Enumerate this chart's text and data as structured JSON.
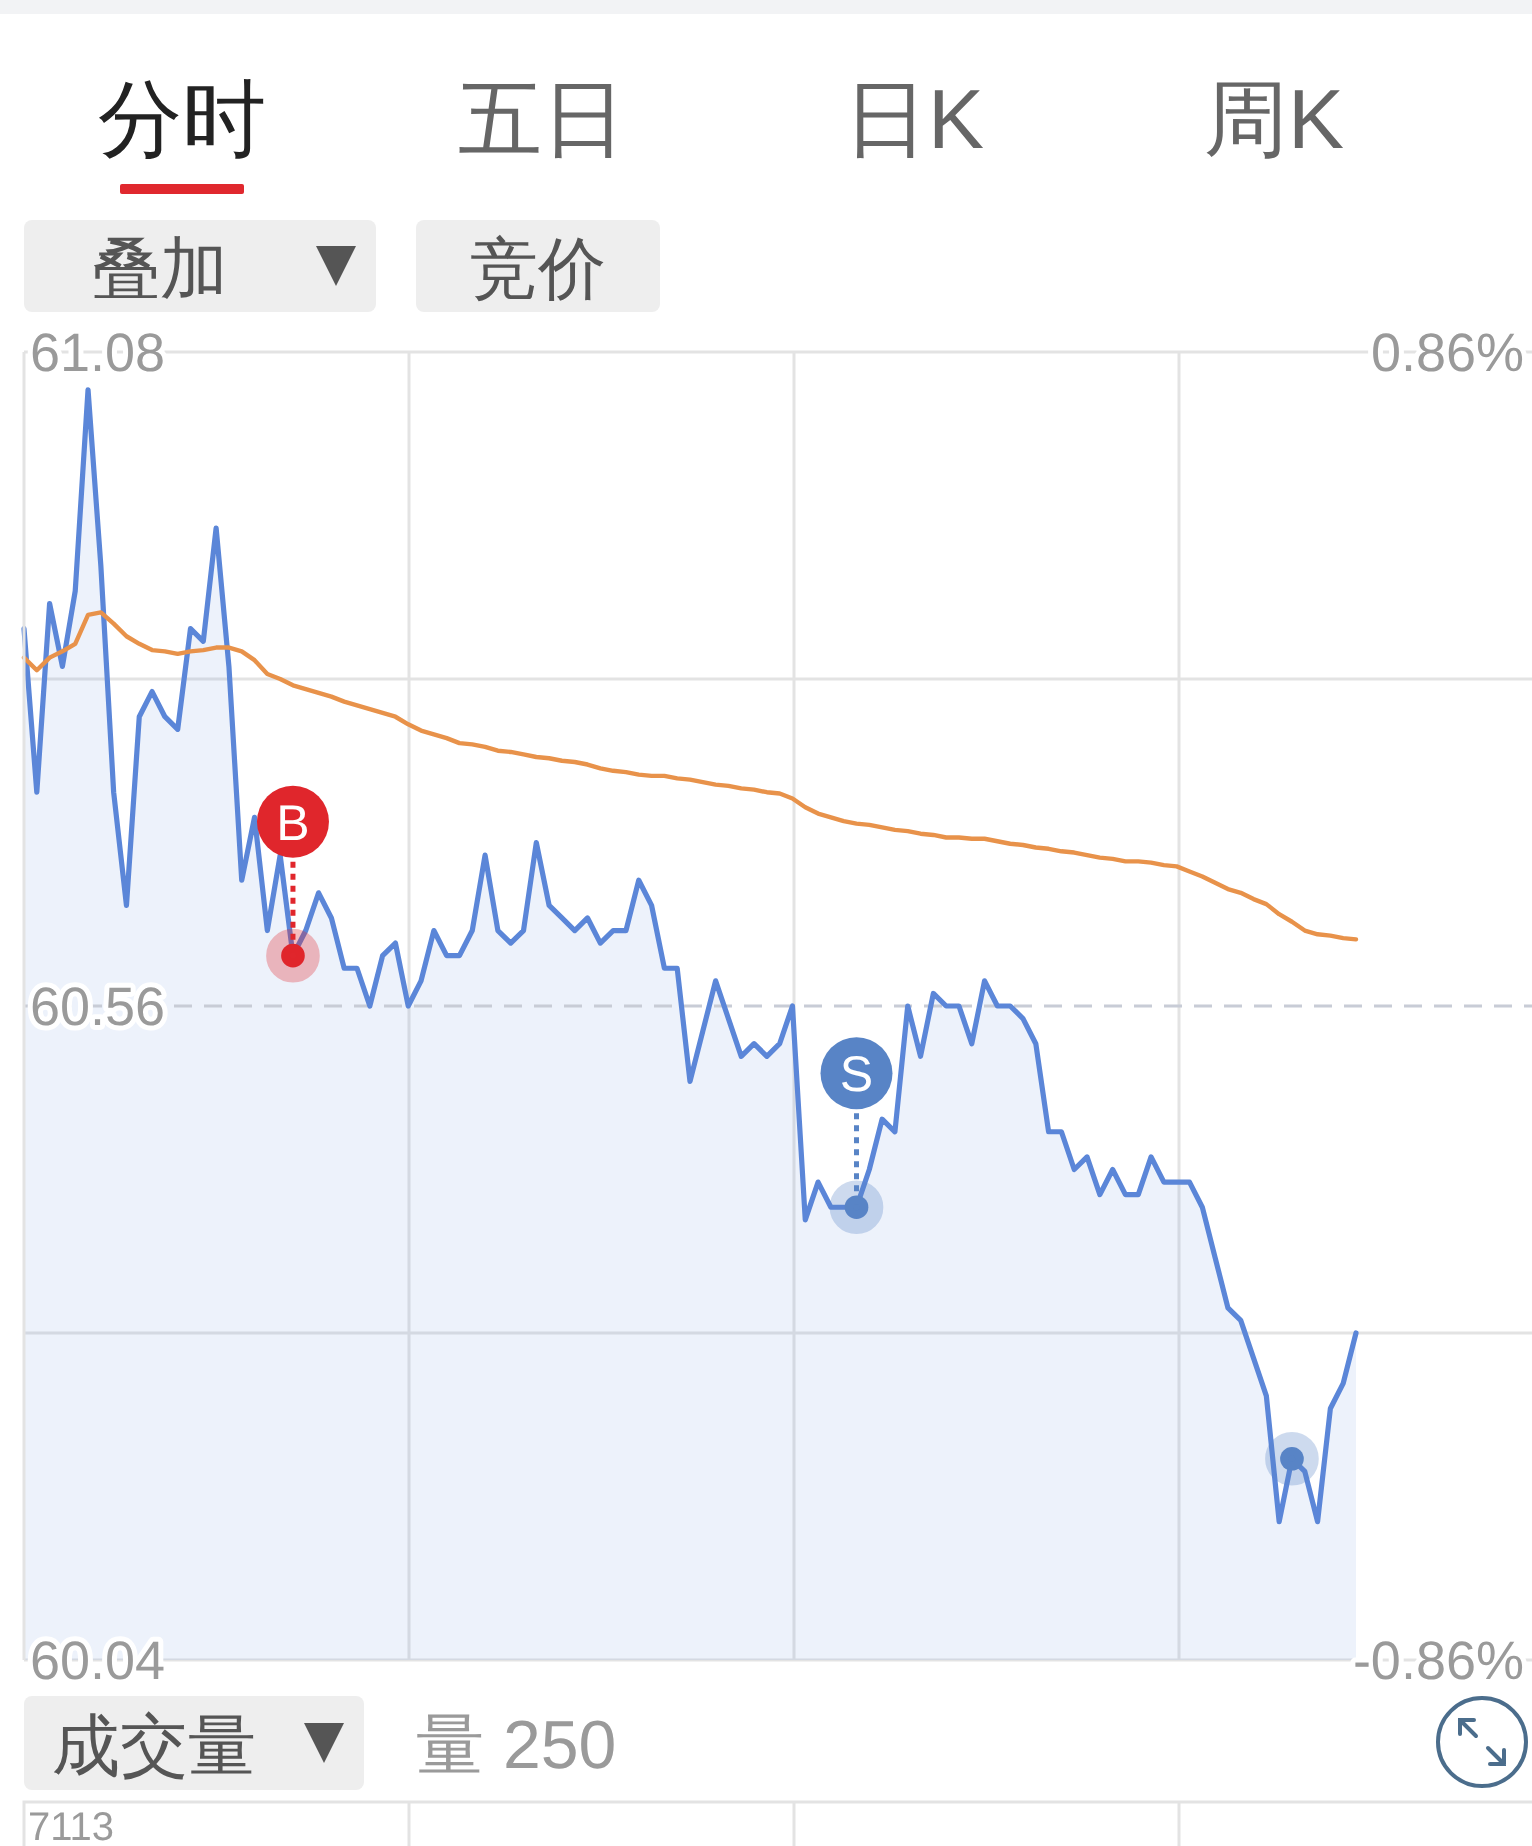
{
  "chart_data": {
    "type": "line",
    "categories": [
      null,
      null,
      null,
      null,
      null,
      null,
      null,
      null,
      null,
      null,
      null,
      null,
      null,
      null,
      null,
      null,
      null,
      null,
      null,
      null,
      null,
      null,
      null,
      null,
      null,
      null,
      null,
      null,
      null,
      null,
      null,
      null,
      null,
      null,
      null,
      null,
      null,
      null,
      null,
      null,
      null,
      null,
      null,
      null,
      null,
      null,
      null,
      null,
      null,
      null,
      null,
      null,
      null,
      null,
      null,
      null,
      null,
      null,
      null,
      null,
      null,
      null,
      null,
      null,
      null,
      null,
      null,
      null,
      null,
      null,
      null,
      null,
      null,
      null,
      null,
      null,
      null,
      null,
      null,
      null,
      null,
      null,
      null,
      null,
      null,
      null,
      null,
      null,
      null,
      null,
      null,
      null,
      null,
      null,
      null,
      null,
      null,
      null,
      null,
      null,
      null,
      null,
      null,
      null,
      null
    ],
    "series": [
      {
        "type": "area",
        "color": "#5b86d8",
        "values": [
          60.86,
          60.73,
          60.88,
          60.83,
          60.89,
          61.05,
          60.91,
          60.73,
          60.64,
          60.79,
          60.81,
          60.79,
          60.78,
          60.86,
          60.85,
          60.94,
          60.83,
          60.66,
          60.71,
          60.62,
          60.68,
          60.6,
          60.62,
          60.65,
          60.63,
          60.59,
          60.59,
          60.56,
          60.6,
          60.61,
          60.56,
          60.58,
          60.62,
          60.6,
          60.6,
          60.62,
          60.68,
          60.62,
          60.61,
          60.62,
          60.69,
          60.64,
          60.63,
          60.62,
          60.63,
          60.61,
          60.62,
          60.62,
          60.66,
          60.64,
          60.59,
          60.59,
          60.5,
          60.54,
          60.58,
          60.55,
          60.52,
          60.53,
          60.52,
          60.53,
          60.56,
          60.39,
          60.42,
          60.4,
          60.4,
          60.4,
          60.43,
          60.47,
          60.46,
          60.56,
          60.52,
          60.57,
          60.56,
          60.56,
          60.53,
          60.58,
          60.56,
          60.56,
          60.55,
          60.53,
          60.46,
          60.46,
          60.43,
          60.44,
          60.41,
          60.43,
          60.41,
          60.41,
          60.44,
          60.42,
          60.42,
          60.42,
          60.4,
          60.36,
          60.32,
          60.31,
          60.28,
          60.25,
          60.15,
          60.2,
          60.19,
          60.15,
          60.24,
          60.26,
          60.3
        ]
      },
      {
        "type": "line",
        "color": "#e8924a",
        "values": [
          60.837,
          60.827,
          60.837,
          60.842,
          60.848,
          60.871,
          60.873,
          60.864,
          60.854,
          60.848,
          60.843,
          60.842,
          60.84,
          60.842,
          60.843,
          60.845,
          60.845,
          60.842,
          60.835,
          60.824,
          60.82,
          60.815,
          60.812,
          60.809,
          60.806,
          60.802,
          60.799,
          60.796,
          60.793,
          60.79,
          60.784,
          60.779,
          60.776,
          60.773,
          60.769,
          60.768,
          60.766,
          60.763,
          60.762,
          60.76,
          60.758,
          60.757,
          60.755,
          60.754,
          60.752,
          60.749,
          60.747,
          60.746,
          60.744,
          60.743,
          60.743,
          60.741,
          60.74,
          60.738,
          60.736,
          60.735,
          60.733,
          60.732,
          60.73,
          60.729,
          60.725,
          60.718,
          60.713,
          60.71,
          60.707,
          60.705,
          60.704,
          60.702,
          60.7,
          60.699,
          60.697,
          60.696,
          60.694,
          60.694,
          60.693,
          60.693,
          60.691,
          60.689,
          60.688,
          60.686,
          60.685,
          60.683,
          60.682,
          60.68,
          60.678,
          60.677,
          60.675,
          60.675,
          60.674,
          60.672,
          60.671,
          60.667,
          60.663,
          60.658,
          60.653,
          60.65,
          60.645,
          60.641,
          60.633,
          60.627,
          60.62,
          60.617,
          60.616,
          60.614,
          60.613
        ]
      },
      {
        "type": "scatter",
        "color": "#e0262c",
        "marker": "circle",
        "values": [
          null,
          null,
          null,
          null,
          null,
          null,
          null,
          null,
          null,
          null,
          null,
          null,
          null,
          null,
          null,
          null,
          null,
          null,
          null,
          null,
          null,
          60.6,
          null,
          null,
          null,
          null,
          null,
          null,
          null,
          null,
          null,
          null,
          null,
          null,
          null,
          null,
          null,
          null,
          null,
          null,
          null,
          null,
          null,
          null,
          null,
          null,
          null,
          null,
          null,
          null,
          null,
          null,
          null,
          null,
          null,
          null,
          null,
          null,
          null,
          null,
          null,
          null,
          null,
          null,
          null,
          null,
          null,
          null,
          null,
          null,
          null,
          null,
          null,
          null,
          null,
          null,
          null,
          null,
          null,
          null,
          null,
          null,
          null,
          null,
          null,
          null,
          null,
          null,
          null,
          null,
          null,
          null,
          null,
          null,
          null,
          null,
          null,
          null,
          null,
          null,
          null,
          null,
          null,
          null,
          null
        ],
        "value_labels": [
          null,
          null,
          null,
          null,
          null,
          null,
          null,
          null,
          null,
          null,
          null,
          null,
          null,
          null,
          null,
          null,
          null,
          null,
          null,
          null,
          null,
          "B",
          null,
          null,
          null,
          null,
          null,
          null,
          null,
          null,
          null,
          null,
          null,
          null,
          null,
          null,
          null,
          null,
          null,
          null,
          null,
          null,
          null,
          null,
          null,
          null,
          null,
          null,
          null,
          null,
          null,
          null,
          null,
          null,
          null,
          null,
          null,
          null,
          null,
          null,
          null,
          null,
          null,
          null,
          null,
          null,
          null,
          null,
          null,
          null,
          null,
          null,
          null,
          null,
          null,
          null,
          null,
          null,
          null,
          null,
          null,
          null,
          null,
          null,
          null,
          null,
          null,
          null,
          null,
          null,
          null,
          null,
          null,
          null,
          null,
          null,
          null,
          null,
          null,
          null,
          null,
          null,
          null,
          null,
          null
        ]
      },
      {
        "type": "scatter",
        "color": "#5884c6",
        "marker": "circle",
        "values": [
          null,
          null,
          null,
          null,
          null,
          null,
          null,
          null,
          null,
          null,
          null,
          null,
          null,
          null,
          null,
          null,
          null,
          null,
          null,
          null,
          null,
          null,
          null,
          null,
          null,
          null,
          null,
          null,
          null,
          null,
          null,
          null,
          null,
          null,
          null,
          null,
          null,
          null,
          null,
          null,
          null,
          null,
          null,
          null,
          null,
          null,
          null,
          null,
          null,
          null,
          null,
          null,
          null,
          null,
          null,
          null,
          null,
          null,
          null,
          null,
          null,
          null,
          null,
          null,
          null,
          60.4,
          null,
          null,
          null,
          null,
          null,
          null,
          null,
          null,
          null,
          null,
          null,
          null,
          null,
          null,
          null,
          null,
          null,
          null,
          null,
          null,
          null,
          null,
          null,
          null,
          null,
          null,
          null,
          null,
          null,
          null,
          null,
          null,
          null,
          60.2,
          null,
          null,
          null,
          null,
          null
        ],
        "value_labels": [
          null,
          null,
          null,
          null,
          null,
          null,
          null,
          null,
          null,
          null,
          null,
          null,
          null,
          null,
          null,
          null,
          null,
          null,
          null,
          null,
          null,
          null,
          null,
          null,
          null,
          null,
          null,
          null,
          null,
          null,
          null,
          null,
          null,
          null,
          null,
          null,
          null,
          null,
          null,
          null,
          null,
          null,
          null,
          null,
          null,
          null,
          null,
          null,
          null,
          null,
          null,
          null,
          null,
          null,
          null,
          null,
          null,
          null,
          null,
          null,
          null,
          null,
          null,
          null,
          null,
          "S",
          null,
          null,
          null,
          null,
          null,
          null,
          null,
          null,
          null,
          null,
          null,
          null,
          null,
          null,
          null,
          null,
          null,
          null,
          null,
          null,
          null,
          null,
          null,
          null,
          null,
          null,
          null,
          null,
          null,
          null,
          null,
          null,
          null,
          null,
          null,
          null,
          null,
          null,
          null
        ]
      }
    ],
    "ylim": [
      60.04,
      61.08
    ],
    "yticks": [
      61.08,
      {
        "value": 60.82,
        "label": null
      },
      60.56,
      {
        "value": 60.3,
        "label": null
      },
      60.04
    ],
    "y2lim": [
      -0.86,
      0.86
    ],
    "y2ticks": [
      {
        "value": 0.86,
        "label": "0.86%"
      },
      {
        "value": -0.86,
        "label": "-0.86%"
      }
    ],
    "ref_lines": [
      {
        "axis": "y",
        "value": 60.56,
        "line_style": "dashed",
        "color": "#c8ccd6"
      }
    ],
    "grid": true,
    "annotations": [
      "分时",
      "五日",
      "日K",
      "周K",
      "叠加",
      "竞价",
      "成交量",
      "量 250",
      "7113"
    ]
  }
}
